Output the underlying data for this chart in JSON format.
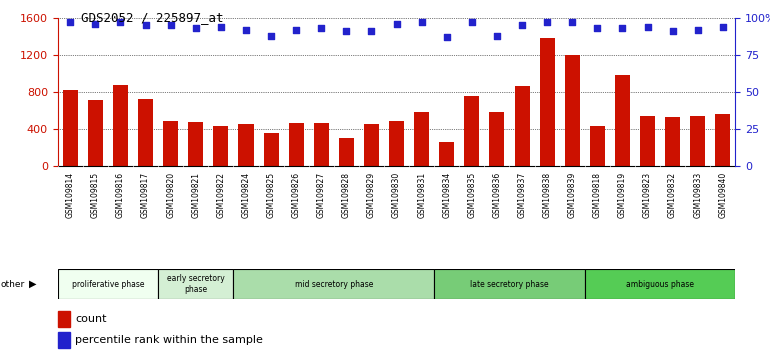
{
  "title": "GDS2052 / 225897_at",
  "samples": [
    "GSM109814",
    "GSM109815",
    "GSM109816",
    "GSM109817",
    "GSM109820",
    "GSM109821",
    "GSM109822",
    "GSM109824",
    "GSM109825",
    "GSM109826",
    "GSM109827",
    "GSM109828",
    "GSM109829",
    "GSM109830",
    "GSM109831",
    "GSM109834",
    "GSM109835",
    "GSM109836",
    "GSM109837",
    "GSM109838",
    "GSM109839",
    "GSM109818",
    "GSM109819",
    "GSM109823",
    "GSM109832",
    "GSM109833",
    "GSM109840"
  ],
  "counts": [
    820,
    710,
    880,
    720,
    490,
    480,
    430,
    460,
    360,
    470,
    470,
    310,
    460,
    490,
    580,
    260,
    760,
    590,
    870,
    1380,
    1200,
    430,
    980,
    540,
    530,
    540,
    560
  ],
  "percentiles": [
    97,
    96,
    97,
    95,
    95,
    93,
    94,
    92,
    88,
    92,
    93,
    91,
    91,
    96,
    97,
    87,
    97,
    88,
    95,
    97,
    97,
    93,
    93,
    94,
    91,
    92,
    94
  ],
  "phases": [
    {
      "name": "proliferative phase",
      "start": 0,
      "end": 3,
      "color": "#f0fff0"
    },
    {
      "name": "early secretory\nphase",
      "start": 4,
      "end": 6,
      "color": "#d4efd4"
    },
    {
      "name": "mid secretory phase",
      "start": 7,
      "end": 14,
      "color": "#aaddaa"
    },
    {
      "name": "late secretory phase",
      "start": 15,
      "end": 20,
      "color": "#77cc77"
    },
    {
      "name": "ambiguous phase",
      "start": 21,
      "end": 26,
      "color": "#55cc55"
    }
  ],
  "bar_color": "#cc1100",
  "dot_color": "#2222cc",
  "left_ylim": [
    0,
    1600
  ],
  "right_ylim": [
    0,
    100
  ],
  "left_yticks": [
    0,
    400,
    800,
    1200,
    1600
  ],
  "right_yticks": [
    0,
    25,
    50,
    75,
    100
  ],
  "right_yticklabels": [
    "0",
    "25",
    "50",
    "75",
    "100%"
  ],
  "xtick_bg": "#d8d8d8"
}
